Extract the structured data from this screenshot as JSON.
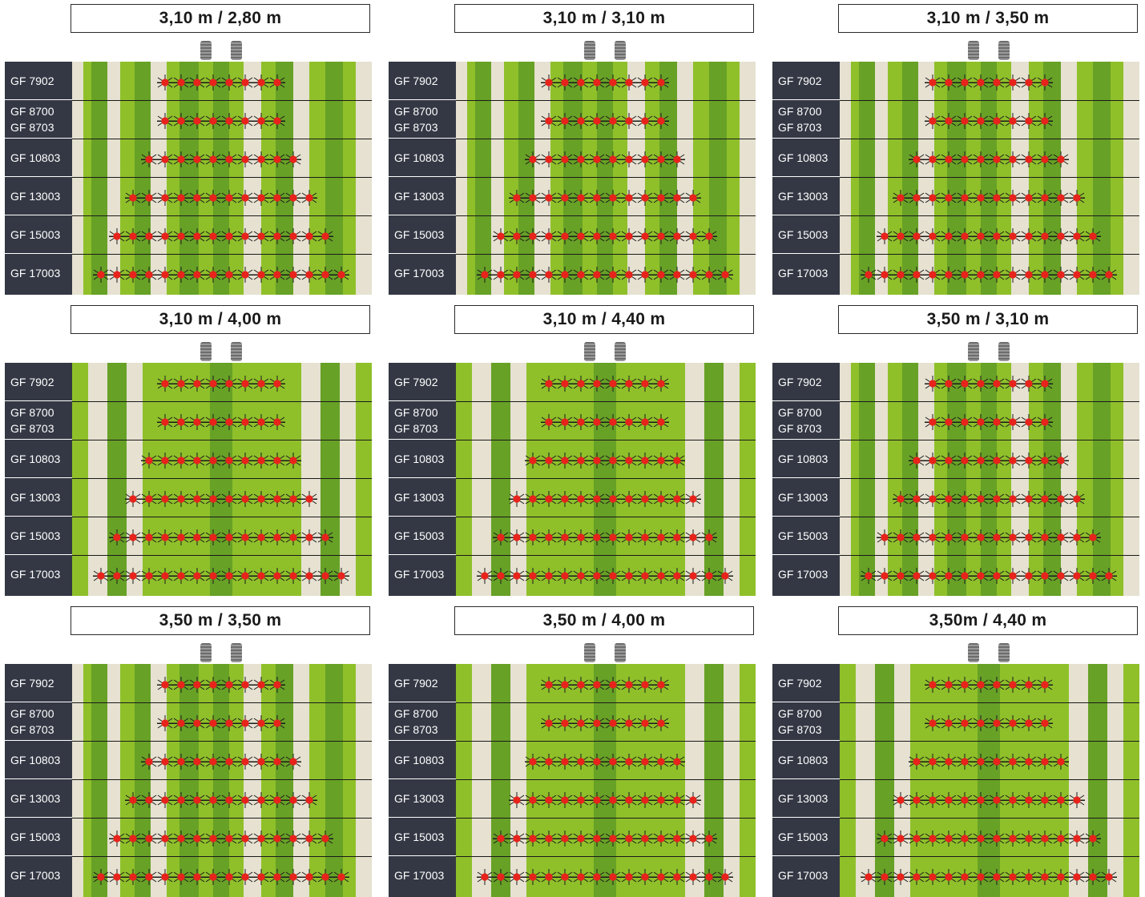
{
  "rows": [
    {
      "labels": [
        "GF 7902"
      ],
      "nozzles": 8
    },
    {
      "labels": [
        "GF 8700",
        "GF 8703"
      ],
      "nozzles": 8
    },
    {
      "labels": [
        "GF 10803"
      ],
      "nozzles": 10
    },
    {
      "labels": [
        "GF 13003"
      ],
      "nozzles": 12
    },
    {
      "labels": [
        "GF 15003"
      ],
      "nozzles": 14
    },
    {
      "labels": [
        "GF 17003"
      ],
      "nozzles": 16
    }
  ],
  "panels": [
    {
      "title": "3,10 m / 2,80 m",
      "variant": "striped"
    },
    {
      "title": "3,10 m / 3,10 m",
      "variant": "striped"
    },
    {
      "title": "3,10 m / 3,50 m",
      "variant": "striped"
    },
    {
      "title": "3,10 m / 4,00 m",
      "variant": "wide"
    },
    {
      "title": "3,10 m / 4,40 m",
      "variant": "wide"
    },
    {
      "title": "3,50 m / 3,10 m",
      "variant": "striped"
    },
    {
      "title": "3,50 m / 3,50 m",
      "variant": "striped"
    },
    {
      "title": "3,50 m / 4,00 m",
      "variant": "wide"
    },
    {
      "title": "3,50m / 4,40 m",
      "variant": "wide"
    }
  ],
  "colors": {
    "cream": "#e6e1d1",
    "light_green": "#8fc02a",
    "dark_green": "#67a126",
    "label_bg": "#343844",
    "nozzle_red": "#e8231b"
  }
}
